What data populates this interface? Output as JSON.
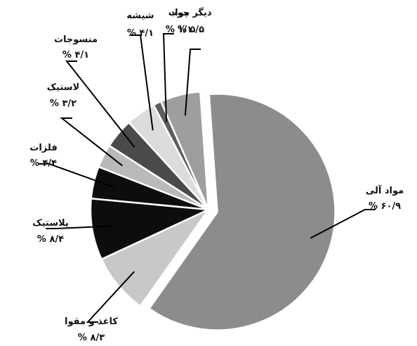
{
  "chart_data": {
    "type": "pie",
    "title": "",
    "slices": [
      {
        "name": "مواد آلی",
        "label": "مواد آلی",
        "value_label": "۶۰/۹ %",
        "value": 60.9,
        "color": "#8c8c8c"
      },
      {
        "name": "کاغذ و مقوا",
        "label": "کاغذ و مقوا",
        "value_label": "۸/۳ %",
        "value": 8.3,
        "color": "#c8c8c8"
      },
      {
        "name": "پلاستیک",
        "label": "پلاستیک",
        "value_label": "۸/۴ %",
        "value": 8.4,
        "color": "#0d0d0d"
      },
      {
        "name": "فلزات",
        "label": "فلزات",
        "value_label": "۴/۴ %",
        "value": 4.4,
        "color": "#0d0d0d"
      },
      {
        "name": "لاستیک",
        "label": "لاستیک",
        "value_label": "۳/۲ %",
        "value": 3.2,
        "color": "#b9b9b9"
      },
      {
        "name": "منسوجات",
        "label": "منسوجات",
        "value_label": "۴/۱ %",
        "value": 4.1,
        "color": "#4a4a4a"
      },
      {
        "name": "شیشه",
        "label": "شیشه",
        "value_label": "۴/۱ %",
        "value": 4.1,
        "color": "#dcdcdc"
      },
      {
        "name": "چوب",
        "label": "چوب",
        "value_label": "۱/۱ %",
        "value": 1.1,
        "color": "#5e5e5e"
      },
      {
        "name": "دیگر مواد",
        "label": "دیگر مواد",
        "value_label": "۵/۵ %",
        "value": 5.5,
        "color": "#9e9e9e"
      }
    ]
  }
}
